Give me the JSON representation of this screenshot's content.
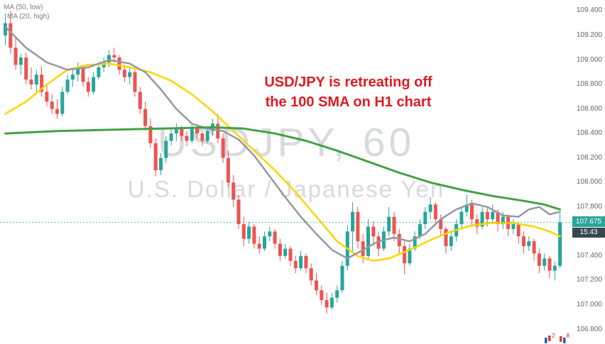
{
  "indicators": {
    "ma50_label": "MA (50, low)",
    "ma20_label": "MA (20, high)"
  },
  "watermark": {
    "title": "USDJPY, 60",
    "subtitle": "U.S. Dollar / Japanese Yen"
  },
  "annotation": {
    "line1": "USD/JPY is retreating off",
    "line2": "the 100 SMA on H1 chart",
    "color": "#e01b22"
  },
  "price_axis": {
    "current_price": "107.675",
    "countdown": "15:43"
  },
  "corner_badges": {
    "count1": "2",
    "count2": "8"
  },
  "chart_data": {
    "type": "candlestick",
    "title": "USDJPY, 60",
    "subtitle": "U.S. Dollar / Japanese Yen",
    "timeframe_minutes": 60,
    "ylim": [
      106.78,
      109.42
    ],
    "y_ticks": [
      109.4,
      109.2,
      109.0,
      108.8,
      108.6,
      108.4,
      108.2,
      108.0,
      107.8,
      107.6,
      107.4,
      107.2,
      107.0,
      106.8
    ],
    "current_price": 107.675,
    "up_color": "#26a69a",
    "down_color": "#ef5350",
    "grid": false,
    "legend_position": "top-left",
    "candles": [
      [
        109.2,
        109.38,
        109.12,
        109.3
      ],
      [
        109.3,
        109.4,
        109.05,
        109.1
      ],
      [
        109.1,
        109.18,
        108.92,
        108.96
      ],
      [
        108.96,
        109.05,
        108.88,
        109.02
      ],
      [
        109.02,
        109.06,
        108.8,
        108.84
      ],
      [
        108.84,
        108.94,
        108.76,
        108.8
      ],
      [
        108.8,
        108.92,
        108.74,
        108.88
      ],
      [
        108.88,
        108.95,
        108.7,
        108.74
      ],
      [
        108.74,
        108.8,
        108.62,
        108.66
      ],
      [
        108.66,
        108.72,
        108.56,
        108.6
      ],
      [
        108.6,
        108.68,
        108.52,
        108.56
      ],
      [
        108.56,
        108.78,
        108.54,
        108.74
      ],
      [
        108.74,
        108.88,
        108.72,
        108.84
      ],
      [
        108.84,
        108.92,
        108.78,
        108.88
      ],
      [
        108.88,
        108.98,
        108.82,
        108.94
      ],
      [
        108.94,
        108.96,
        108.78,
        108.82
      ],
      [
        108.82,
        108.86,
        108.7,
        108.74
      ],
      [
        108.74,
        108.9,
        108.72,
        108.86
      ],
      [
        108.86,
        108.98,
        108.84,
        108.94
      ],
      [
        108.94,
        109.02,
        108.9,
        108.98
      ],
      [
        108.98,
        109.08,
        108.94,
        109.04
      ],
      [
        109.04,
        109.1,
        108.98,
        109.02
      ],
      [
        109.02,
        109.04,
        108.88,
        108.92
      ],
      [
        108.92,
        108.96,
        108.82,
        108.86
      ],
      [
        108.86,
        108.94,
        108.8,
        108.9
      ],
      [
        108.9,
        108.92,
        108.7,
        108.74
      ],
      [
        108.74,
        108.78,
        108.56,
        108.6
      ],
      [
        108.6,
        108.66,
        108.42,
        108.46
      ],
      [
        108.46,
        108.52,
        108.28,
        108.32
      ],
      [
        108.32,
        108.36,
        108.05,
        108.1
      ],
      [
        108.1,
        108.24,
        108.06,
        108.2
      ],
      [
        108.2,
        108.38,
        108.16,
        108.34
      ],
      [
        108.34,
        108.44,
        108.3,
        108.4
      ],
      [
        108.4,
        108.48,
        108.34,
        108.44
      ],
      [
        108.44,
        108.46,
        108.34,
        108.38
      ],
      [
        108.38,
        108.42,
        108.3,
        108.34
      ],
      [
        108.34,
        108.48,
        108.32,
        108.44
      ],
      [
        108.44,
        108.46,
        108.36,
        108.4
      ],
      [
        108.4,
        108.42,
        108.3,
        108.34
      ],
      [
        108.34,
        108.44,
        108.32,
        108.42
      ],
      [
        108.42,
        108.52,
        108.38,
        108.48
      ],
      [
        108.48,
        108.56,
        108.32,
        108.36
      ],
      [
        108.36,
        108.4,
        108.16,
        108.2
      ],
      [
        108.2,
        108.26,
        107.96,
        108.0
      ],
      [
        108.0,
        108.06,
        107.8,
        107.86
      ],
      [
        107.86,
        107.9,
        107.62,
        107.66
      ],
      [
        107.66,
        107.72,
        107.48,
        107.54
      ],
      [
        107.54,
        107.68,
        107.5,
        107.64
      ],
      [
        107.64,
        107.66,
        107.46,
        107.5
      ],
      [
        107.5,
        107.56,
        107.42,
        107.46
      ],
      [
        107.46,
        107.6,
        107.44,
        107.56
      ],
      [
        107.56,
        107.64,
        107.52,
        107.6
      ],
      [
        107.6,
        107.62,
        107.46,
        107.5
      ],
      [
        107.5,
        107.54,
        107.36,
        107.4
      ],
      [
        107.4,
        107.5,
        107.38,
        107.46
      ],
      [
        107.46,
        107.48,
        107.32,
        107.36
      ],
      [
        107.36,
        107.4,
        107.26,
        107.3
      ],
      [
        107.3,
        107.44,
        107.28,
        107.4
      ],
      [
        107.4,
        107.42,
        107.26,
        107.3
      ],
      [
        107.3,
        107.34,
        107.16,
        107.2
      ],
      [
        107.2,
        107.26,
        107.08,
        107.12
      ],
      [
        107.12,
        107.16,
        107.0,
        107.04
      ],
      [
        107.04,
        107.1,
        106.93,
        106.98
      ],
      [
        106.98,
        107.1,
        106.96,
        107.06
      ],
      [
        107.06,
        107.16,
        107.02,
        107.12
      ],
      [
        107.12,
        107.36,
        107.1,
        107.32
      ],
      [
        107.32,
        107.65,
        107.28,
        107.6
      ],
      [
        107.6,
        107.84,
        107.42,
        107.76
      ],
      [
        107.76,
        107.8,
        107.46,
        107.52
      ],
      [
        107.52,
        107.58,
        107.34,
        107.4
      ],
      [
        107.4,
        107.7,
        107.38,
        107.64
      ],
      [
        107.64,
        107.68,
        107.5,
        107.56
      ],
      [
        107.56,
        107.6,
        107.4,
        107.46
      ],
      [
        107.46,
        107.64,
        107.44,
        107.6
      ],
      [
        107.6,
        107.8,
        107.56,
        107.72
      ],
      [
        107.72,
        107.76,
        107.52,
        107.58
      ],
      [
        107.58,
        107.62,
        107.42,
        107.48
      ],
      [
        107.48,
        107.52,
        107.25,
        107.34
      ],
      [
        107.34,
        107.5,
        107.32,
        107.46
      ],
      [
        107.46,
        107.6,
        107.44,
        107.56
      ],
      [
        107.56,
        107.7,
        107.54,
        107.66
      ],
      [
        107.66,
        107.8,
        107.62,
        107.76
      ],
      [
        107.76,
        107.88,
        107.7,
        107.82
      ],
      [
        107.82,
        107.84,
        107.66,
        107.7
      ],
      [
        107.7,
        107.74,
        107.56,
        107.62
      ],
      [
        107.62,
        107.64,
        107.42,
        107.48
      ],
      [
        107.48,
        107.6,
        107.44,
        107.56
      ],
      [
        107.56,
        107.7,
        107.52,
        107.66
      ],
      [
        107.66,
        107.8,
        107.62,
        107.76
      ],
      [
        107.76,
        107.9,
        107.72,
        107.82
      ],
      [
        107.82,
        107.86,
        107.64,
        107.7
      ],
      [
        107.7,
        107.74,
        107.58,
        107.64
      ],
      [
        107.64,
        107.8,
        107.62,
        107.76
      ],
      [
        107.76,
        107.8,
        107.64,
        107.7
      ],
      [
        107.7,
        107.82,
        107.66,
        107.76
      ],
      [
        107.76,
        107.78,
        107.6,
        107.66
      ],
      [
        107.66,
        107.76,
        107.62,
        107.72
      ],
      [
        107.72,
        107.74,
        107.56,
        107.62
      ],
      [
        107.62,
        107.7,
        107.58,
        107.66
      ],
      [
        107.66,
        107.68,
        107.5,
        107.56
      ],
      [
        107.56,
        107.6,
        107.42,
        107.48
      ],
      [
        107.48,
        107.56,
        107.44,
        107.52
      ],
      [
        107.52,
        107.54,
        107.36,
        107.42
      ],
      [
        107.42,
        107.46,
        107.26,
        107.32
      ],
      [
        107.32,
        107.42,
        107.28,
        107.38
      ],
      [
        107.38,
        107.4,
        107.22,
        107.28
      ],
      [
        107.28,
        107.36,
        107.2,
        107.32
      ],
      [
        107.32,
        107.75,
        107.3,
        107.675
      ]
    ],
    "series": [
      {
        "name": "MA (50, low)",
        "color": "#ffd400",
        "width": 2.5,
        "points": [
          [
            0,
            108.56
          ],
          [
            4,
            108.66
          ],
          [
            8,
            108.8
          ],
          [
            12,
            108.92
          ],
          [
            16,
            108.96
          ],
          [
            20,
            108.97
          ],
          [
            24,
            108.94
          ],
          [
            28,
            108.9
          ],
          [
            32,
            108.83
          ],
          [
            36,
            108.72
          ],
          [
            40,
            108.58
          ],
          [
            44,
            108.42
          ],
          [
            48,
            108.26
          ],
          [
            52,
            108.1
          ],
          [
            56,
            107.92
          ],
          [
            60,
            107.72
          ],
          [
            64,
            107.52
          ],
          [
            68,
            107.4
          ],
          [
            71,
            107.36
          ],
          [
            74,
            107.38
          ],
          [
            78,
            107.45
          ],
          [
            82,
            107.53
          ],
          [
            86,
            107.6
          ],
          [
            90,
            107.65
          ],
          [
            94,
            107.67
          ],
          [
            98,
            107.67
          ],
          [
            102,
            107.64
          ],
          [
            105,
            107.6
          ],
          [
            107,
            107.56
          ]
        ]
      },
      {
        "name": "MA (20, high)",
        "color": "#9598a1",
        "width": 2.5,
        "points": [
          [
            0,
            109.27
          ],
          [
            4,
            109.1
          ],
          [
            8,
            108.98
          ],
          [
            12,
            108.92
          ],
          [
            16,
            108.94
          ],
          [
            20,
            109.0
          ],
          [
            24,
            108.97
          ],
          [
            27,
            108.9
          ],
          [
            30,
            108.76
          ],
          [
            33,
            108.6
          ],
          [
            36,
            108.48
          ],
          [
            39,
            108.44
          ],
          [
            42,
            108.42
          ],
          [
            45,
            108.35
          ],
          [
            48,
            108.22
          ],
          [
            51,
            108.05
          ],
          [
            54,
            107.88
          ],
          [
            57,
            107.72
          ],
          [
            60,
            107.58
          ],
          [
            63,
            107.45
          ],
          [
            66,
            107.38
          ],
          [
            69,
            107.45
          ],
          [
            72,
            107.52
          ],
          [
            75,
            107.55
          ],
          [
            78,
            107.52
          ],
          [
            81,
            107.58
          ],
          [
            84,
            107.7
          ],
          [
            87,
            107.78
          ],
          [
            90,
            107.83
          ],
          [
            93,
            107.8
          ],
          [
            96,
            107.73
          ],
          [
            99,
            107.72
          ],
          [
            101,
            107.78
          ],
          [
            103,
            107.8
          ],
          [
            105,
            107.74
          ],
          [
            107,
            107.76
          ]
        ]
      },
      {
        "name": "100 SMA",
        "color": "#43a047",
        "width": 3,
        "points": [
          [
            0,
            108.4
          ],
          [
            10,
            108.42
          ],
          [
            20,
            108.43
          ],
          [
            30,
            108.44
          ],
          [
            40,
            108.45
          ],
          [
            46,
            108.44
          ],
          [
            52,
            108.4
          ],
          [
            58,
            108.34
          ],
          [
            64,
            108.26
          ],
          [
            70,
            108.17
          ],
          [
            76,
            108.08
          ],
          [
            82,
            108.0
          ],
          [
            88,
            107.94
          ],
          [
            94,
            107.89
          ],
          [
            100,
            107.85
          ],
          [
            104,
            107.82
          ],
          [
            107,
            107.78
          ]
        ]
      }
    ]
  }
}
